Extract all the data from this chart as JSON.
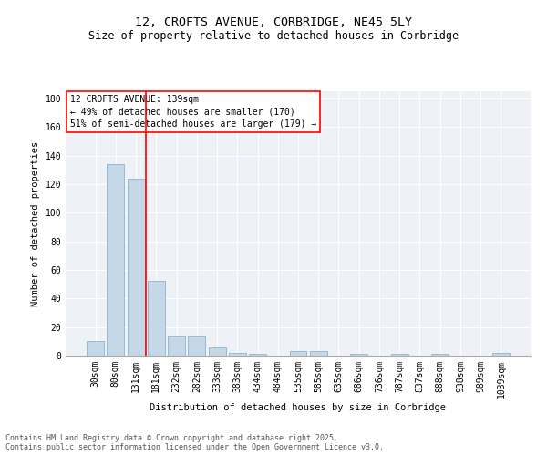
{
  "title_line1": "12, CROFTS AVENUE, CORBRIDGE, NE45 5LY",
  "title_line2": "Size of property relative to detached houses in Corbridge",
  "xlabel": "Distribution of detached houses by size in Corbridge",
  "ylabel": "Number of detached properties",
  "categories": [
    "30sqm",
    "80sqm",
    "131sqm",
    "181sqm",
    "232sqm",
    "282sqm",
    "333sqm",
    "383sqm",
    "434sqm",
    "484sqm",
    "535sqm",
    "585sqm",
    "635sqm",
    "686sqm",
    "736sqm",
    "787sqm",
    "837sqm",
    "888sqm",
    "938sqm",
    "989sqm",
    "1039sqm"
  ],
  "values": [
    10,
    134,
    124,
    52,
    14,
    14,
    6,
    2,
    1,
    0,
    3,
    3,
    0,
    1,
    0,
    1,
    0,
    1,
    0,
    0,
    2
  ],
  "bar_color": "#c5d8e8",
  "bar_edge_color": "#7aaac8",
  "bar_width": 0.85,
  "vline_x": 2.5,
  "vline_color": "red",
  "vline_linewidth": 1.2,
  "annotation_line1": "12 CROFTS AVENUE: 139sqm",
  "annotation_line2": "← 49% of detached houses are smaller (170)",
  "annotation_line3": "51% of semi-detached houses are larger (179) →",
  "ylim": [
    0,
    185
  ],
  "yticks": [
    0,
    20,
    40,
    60,
    80,
    100,
    120,
    140,
    160,
    180
  ],
  "background_color": "#eef2f7",
  "grid_color": "#ffffff",
  "footer_line1": "Contains HM Land Registry data © Crown copyright and database right 2025.",
  "footer_line2": "Contains public sector information licensed under the Open Government Licence v3.0.",
  "title_fontsize": 9.5,
  "subtitle_fontsize": 8.5,
  "axis_label_fontsize": 7.5,
  "tick_fontsize": 7,
  "annotation_fontsize": 7,
  "footer_fontsize": 6
}
